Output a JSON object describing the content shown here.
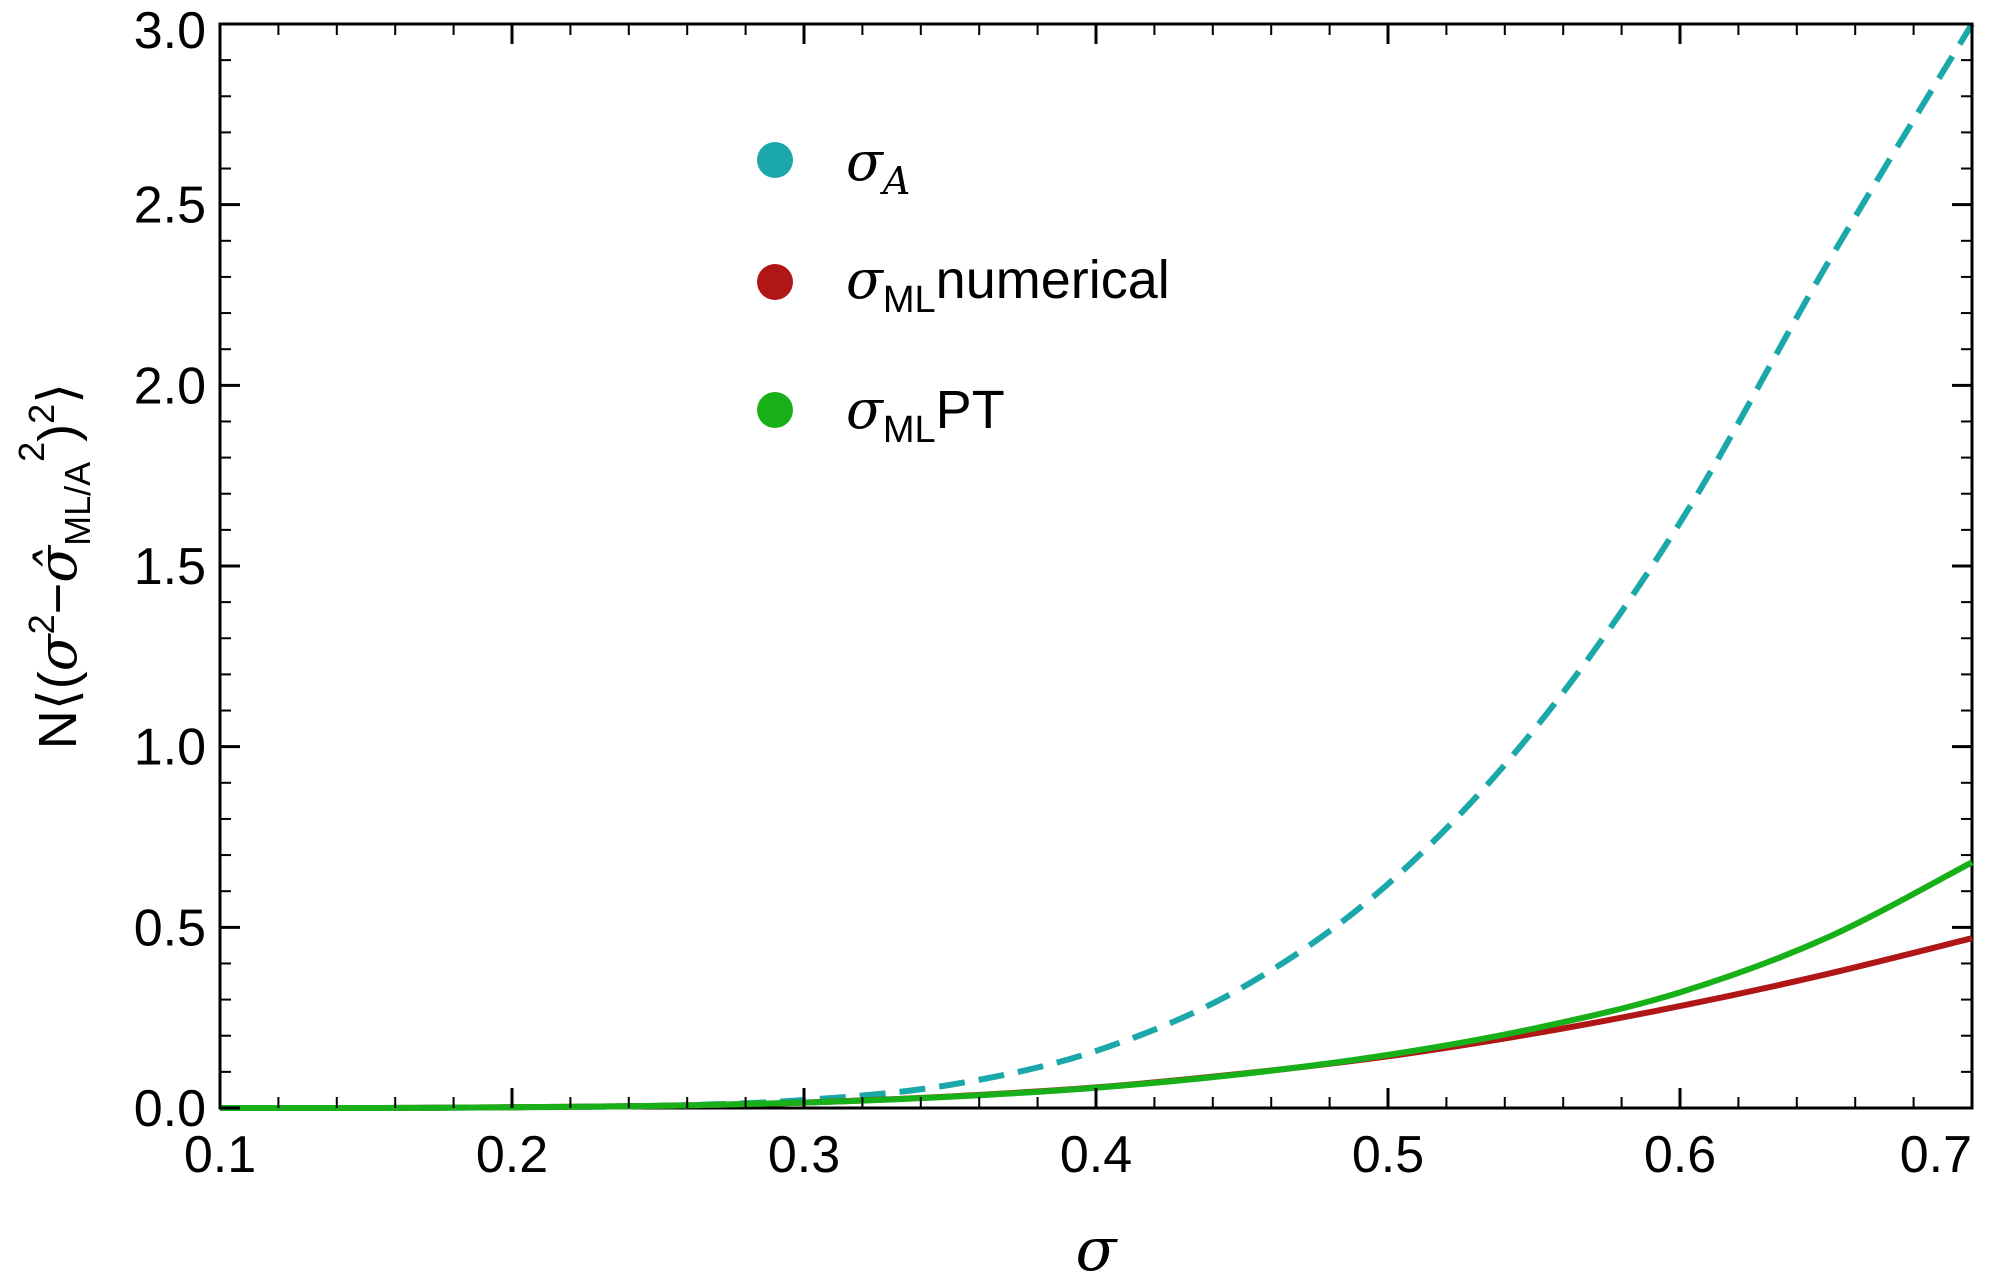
{
  "chart_data": {
    "type": "line",
    "title": "",
    "xlabel": "σ",
    "ylabel_parts": {
      "prefix": "N⟨(",
      "sigma": "σ",
      "sup2": "2",
      "minus": "−",
      "sigma_hat": "σ̂",
      "sub": "ML/A",
      "close": ")",
      "sup2b": "2",
      "end": "⟩"
    },
    "xlim": [
      0.1,
      0.7
    ],
    "ylim": [
      0.0,
      3.0
    ],
    "x_ticks": [
      "0.1",
      "0.2",
      "0.3",
      "0.4",
      "0.5",
      "0.6",
      "0.7"
    ],
    "y_ticks": [
      "0.0",
      "0.5",
      "1.0",
      "1.5",
      "2.0",
      "2.5",
      "3.0"
    ],
    "grid": false,
    "legend_position": "top-center",
    "series": [
      {
        "key": "sigma_A",
        "legend": {
          "main": "σ",
          "sub": "A",
          "suffix": ""
        },
        "color": "#1aa8aa",
        "dashed": true,
        "x": [
          0.1,
          0.15,
          0.2,
          0.25,
          0.3,
          0.35,
          0.4,
          0.45,
          0.5,
          0.55,
          0.6,
          0.65,
          0.7
        ],
        "y": [
          0.0,
          0.0,
          0.002,
          0.006,
          0.022,
          0.064,
          0.158,
          0.333,
          0.62,
          1.047,
          1.62,
          2.33,
          3.0
        ]
      },
      {
        "key": "sigma_ML_numerical",
        "legend": {
          "main": "σ",
          "sub": "ML",
          "suffix": "numerical"
        },
        "color": "#b01616",
        "dashed": false,
        "x": [
          0.1,
          0.15,
          0.2,
          0.25,
          0.3,
          0.35,
          0.4,
          0.45,
          0.5,
          0.55,
          0.6,
          0.65,
          0.7
        ],
        "y": [
          0.0,
          0.0,
          0.002,
          0.006,
          0.015,
          0.032,
          0.057,
          0.095,
          0.143,
          0.206,
          0.282,
          0.37,
          0.47
        ]
      },
      {
        "key": "sigma_ML_PT",
        "legend": {
          "main": "σ",
          "sub": "ML",
          "suffix": "PT"
        },
        "color": "#18b018",
        "dashed": false,
        "x": [
          0.1,
          0.15,
          0.2,
          0.25,
          0.3,
          0.35,
          0.4,
          0.45,
          0.5,
          0.55,
          0.6,
          0.65,
          0.7
        ],
        "y": [
          0.0,
          0.0,
          0.002,
          0.006,
          0.015,
          0.031,
          0.056,
          0.094,
          0.147,
          0.22,
          0.32,
          0.47,
          0.68
        ]
      }
    ]
  }
}
